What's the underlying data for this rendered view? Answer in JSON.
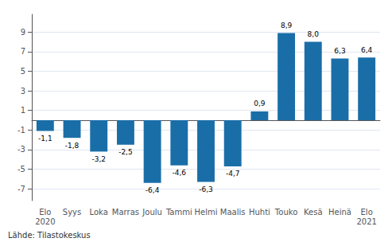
{
  "chart_data": {
    "type": "bar",
    "categories": [
      "Elo\n2020",
      "Syys",
      "Loka",
      "Marras",
      "Joulu",
      "Tammi",
      "Helmi",
      "Maalis",
      "Huhti",
      "Touko",
      "Kesä",
      "Heinä",
      "Elo\n2021"
    ],
    "values": [
      -1.1,
      -1.8,
      -3.2,
      -2.5,
      -6.4,
      -4.6,
      -6.3,
      -4.7,
      0.9,
      8.9,
      8.0,
      6.3,
      6.4
    ],
    "value_labels": [
      "-1,1",
      "-1,8",
      "-3,2",
      "-2,5",
      "-6,4",
      "-4,6",
      "-6,3",
      "-4,7",
      "0,9",
      "8,9",
      "8,0",
      "6,3",
      "6,4"
    ],
    "data_labels": true,
    "color": "#1a6ea8",
    "ylim": [
      -8.2,
      10.8
    ],
    "yticks": [
      -7,
      -5,
      -3,
      -1,
      1,
      3,
      5,
      7,
      9
    ],
    "grid": true,
    "annotation": "Lähde: Tilastokeskus"
  }
}
